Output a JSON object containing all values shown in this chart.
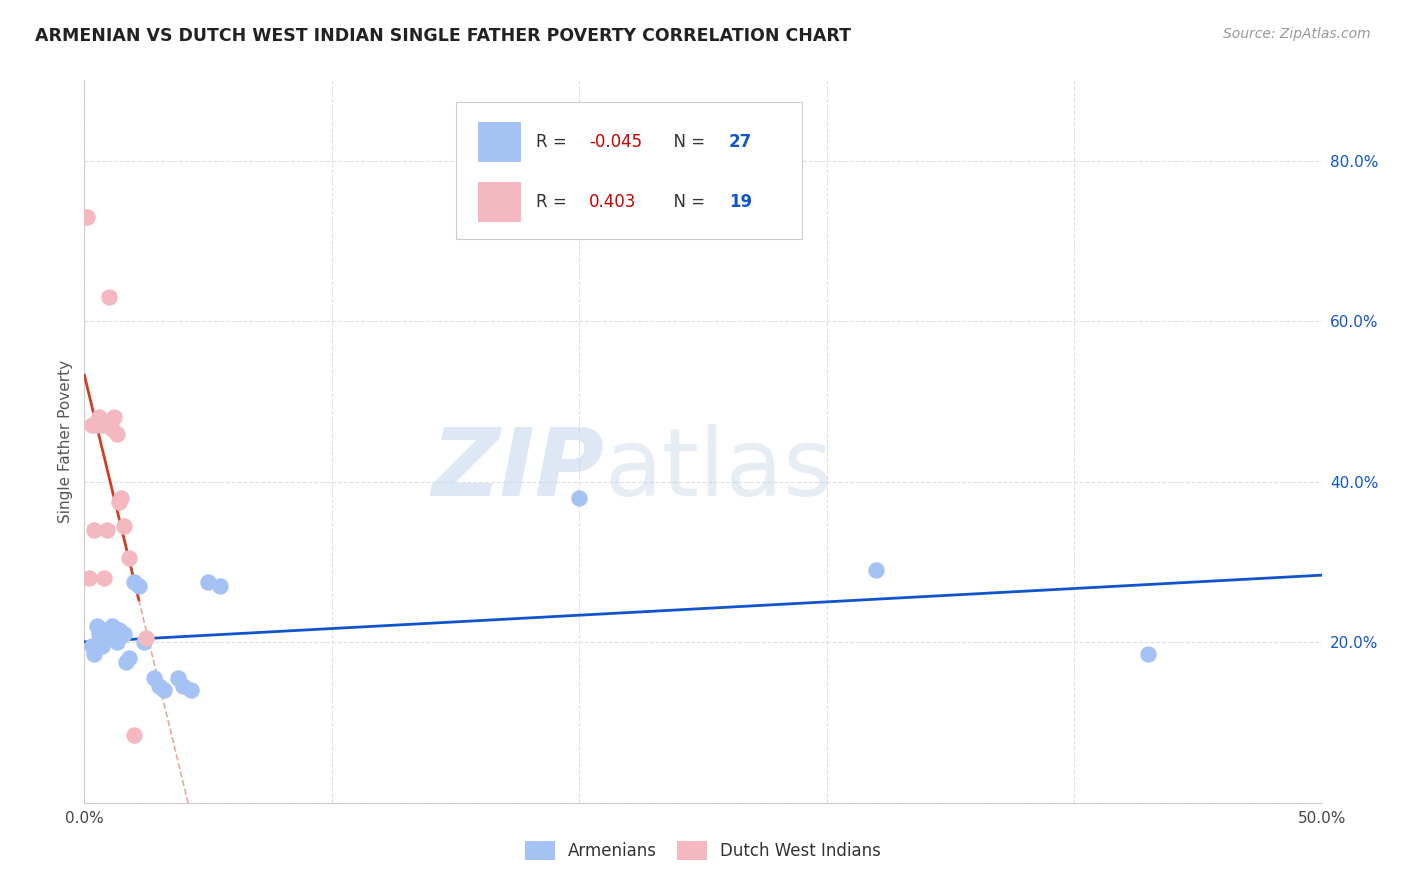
{
  "title": "ARMENIAN VS DUTCH WEST INDIAN SINGLE FATHER POVERTY CORRELATION CHART",
  "source": "Source: ZipAtlas.com",
  "ylabel": "Single Father Poverty",
  "xlim": [
    0.0,
    0.5
  ],
  "ylim": [
    0.0,
    0.9
  ],
  "xticks": [
    0.0,
    0.1,
    0.2,
    0.3,
    0.4,
    0.5
  ],
  "yticks": [
    0.0,
    0.2,
    0.4,
    0.6,
    0.8
  ],
  "xticklabels": [
    "0.0%",
    "",
    "",
    "",
    "",
    "50.0%"
  ],
  "yticklabels": [
    "",
    "20.0%",
    "40.0%",
    "60.0%",
    "80.0%"
  ],
  "armenian_color": "#a4c2f4",
  "dutch_color": "#f4b8c1",
  "armenian_line_color": "#1155cc",
  "dutch_line_color": "#cc4125",
  "armenian_R": -0.045,
  "armenian_N": 27,
  "dutch_R": 0.403,
  "dutch_N": 19,
  "armenian_scatter_x": [
    0.003,
    0.004,
    0.005,
    0.006,
    0.007,
    0.008,
    0.01,
    0.011,
    0.013,
    0.014,
    0.016,
    0.017,
    0.018,
    0.02,
    0.022,
    0.024,
    0.028,
    0.03,
    0.032,
    0.038,
    0.04,
    0.043,
    0.05,
    0.055,
    0.2,
    0.32,
    0.43
  ],
  "armenian_scatter_y": [
    0.195,
    0.185,
    0.22,
    0.21,
    0.195,
    0.215,
    0.21,
    0.22,
    0.2,
    0.215,
    0.21,
    0.175,
    0.18,
    0.275,
    0.27,
    0.2,
    0.155,
    0.145,
    0.14,
    0.155,
    0.145,
    0.14,
    0.275,
    0.27,
    0.38,
    0.29,
    0.185
  ],
  "dutch_scatter_x": [
    0.001,
    0.002,
    0.003,
    0.004,
    0.005,
    0.006,
    0.007,
    0.008,
    0.009,
    0.01,
    0.011,
    0.012,
    0.013,
    0.014,
    0.015,
    0.016,
    0.018,
    0.02,
    0.025
  ],
  "dutch_scatter_y": [
    0.73,
    0.28,
    0.47,
    0.34,
    0.47,
    0.48,
    0.47,
    0.28,
    0.34,
    0.63,
    0.465,
    0.48,
    0.46,
    0.375,
    0.38,
    0.345,
    0.305,
    0.085,
    0.205
  ],
  "watermark_zip": "ZIP",
  "watermark_atlas": "atlas",
  "background_color": "#ffffff",
  "grid_color": "#e0e0e0",
  "legend_R_color": "#cc0000",
  "legend_N_color": "#1155cc"
}
